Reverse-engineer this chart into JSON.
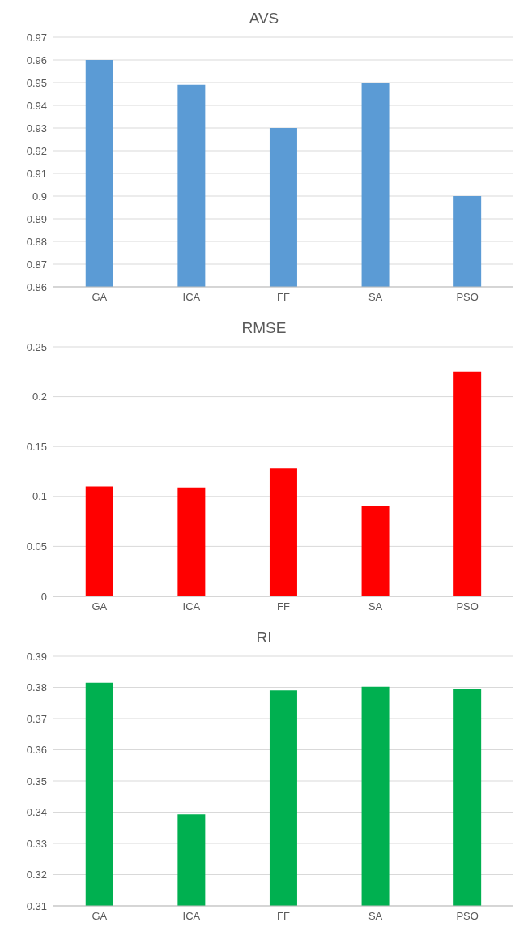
{
  "chart_data": [
    {
      "type": "bar",
      "title": "AVS",
      "categories": [
        "GA",
        "ICA",
        "FF",
        "SA",
        "PSO"
      ],
      "values": [
        0.96,
        0.949,
        0.93,
        0.95,
        0.9
      ],
      "color": "#5b9bd5",
      "ylim": [
        0.86,
        0.97
      ],
      "yticks": [
        0.86,
        0.87,
        0.88,
        0.89,
        0.9,
        0.91,
        0.92,
        0.93,
        0.94,
        0.95,
        0.96,
        0.97
      ],
      "grid": "y"
    },
    {
      "type": "bar",
      "title": "RMSE",
      "categories": [
        "GA",
        "ICA",
        "FF",
        "SA",
        "PSO"
      ],
      "values": [
        0.11,
        0.109,
        0.128,
        0.091,
        0.225
      ],
      "color": "#ff0000",
      "ylim": [
        0,
        0.25
      ],
      "yticks": [
        0,
        0.05,
        0.1,
        0.15,
        0.2,
        0.25
      ],
      "grid": "y"
    },
    {
      "type": "bar",
      "title": "RI",
      "categories": [
        "GA",
        "ICA",
        "FF",
        "SA",
        "PSO"
      ],
      "values": [
        0.3815,
        0.3393,
        0.379,
        0.3802,
        0.3794
      ],
      "color": "#00b050",
      "ylim": [
        0.31,
        0.39
      ],
      "yticks": [
        0.31,
        0.32,
        0.33,
        0.34,
        0.35,
        0.36,
        0.37,
        0.38,
        0.39
      ],
      "grid": "y"
    }
  ]
}
